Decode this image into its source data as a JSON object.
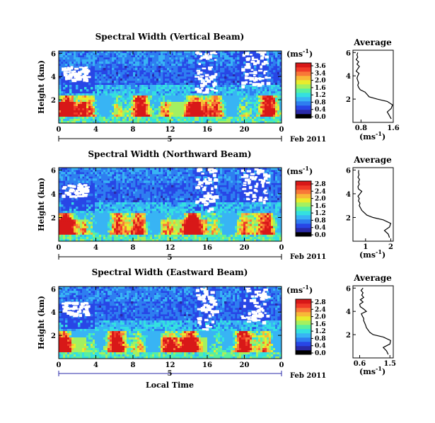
{
  "figure": {
    "date_label": "Feb 2011",
    "day_label": "5",
    "xaxis_title": "Local Time",
    "yaxis_title": "Height (km)",
    "unit_label": "(ms",
    "unit_exp": "-1",
    "unit_close": ")",
    "avg_title": "Average",
    "avg_unit": "(ms",
    "avg_unit_close": ")"
  },
  "colors": {
    "scale": [
      "#000000",
      "#2a2aa8",
      "#2846e6",
      "#2e7ef0",
      "#38b4f4",
      "#34e0e0",
      "#58f0a0",
      "#a4f060",
      "#e8ec2c",
      "#f8b838",
      "#f87838",
      "#f03a28",
      "#d81818"
    ]
  },
  "chart_data": [
    {
      "type": "heatmap",
      "title": "Spectral Width (Vertical Beam)",
      "x_ticks": [
        "0",
        "4",
        "8",
        "12",
        "16",
        "20",
        "0"
      ],
      "y_ticks": [
        "6",
        "4",
        "2"
      ],
      "xlim": [
        0,
        24
      ],
      "ylim": [
        0,
        6.2
      ],
      "colorbar_ticks": [
        "3.6",
        "3.4",
        "2.0",
        "1.6",
        "1.2",
        "0.8",
        "0.4",
        "0.0"
      ],
      "colorbar_range": [
        0,
        3.6
      ],
      "average_profile": {
        "x_ticks": [
          "0.8",
          "1.6"
        ],
        "y_ticks": [
          "6",
          "4",
          "2"
        ],
        "xlim": [
          0.6,
          1.6
        ],
        "ylim": [
          0,
          6.2
        ],
        "height": [
          0.3,
          0.6,
          0.9,
          1.2,
          1.5,
          1.8,
          2.0,
          2.2,
          2.4,
          2.6,
          2.8,
          3.0,
          3.2,
          3.4,
          3.6,
          3.8,
          4.0,
          4.2,
          4.4,
          4.6,
          4.8,
          5.0,
          5.2,
          5.4,
          5.6,
          5.8,
          6.0
        ],
        "width": [
          1.55,
          1.5,
          1.45,
          1.55,
          1.58,
          1.45,
          1.2,
          1.0,
          0.95,
          0.9,
          0.78,
          0.74,
          0.72,
          0.74,
          0.72,
          0.7,
          0.72,
          0.75,
          0.68,
          0.72,
          0.76,
          0.7,
          0.74,
          0.68,
          0.72,
          0.7,
          0.72
        ]
      }
    },
    {
      "type": "heatmap",
      "title": "Spectral Width (Northward Beam)",
      "x_ticks": [
        "0",
        "4",
        "8",
        "12",
        "16",
        "20",
        "0"
      ],
      "y_ticks": [
        "6",
        "4",
        "2"
      ],
      "xlim": [
        0,
        24
      ],
      "ylim": [
        0,
        6.2
      ],
      "colorbar_ticks": [
        "2.8",
        "2.4",
        "2.0",
        "1.6",
        "1.2",
        "0.8",
        "0.4",
        "0.0"
      ],
      "colorbar_range": [
        0,
        2.8
      ],
      "average_profile": {
        "x_ticks": [
          "1",
          "2"
        ],
        "y_ticks": [
          "6",
          "4",
          "2"
        ],
        "xlim": [
          0.5,
          2.1
        ],
        "ylim": [
          0,
          6.2
        ],
        "height": [
          0.3,
          0.6,
          0.9,
          1.2,
          1.5,
          1.8,
          2.0,
          2.2,
          2.4,
          2.6,
          2.8,
          3.0,
          3.2,
          3.4,
          3.6,
          3.8,
          4.0,
          4.2,
          4.4,
          4.6,
          4.8,
          5.0,
          5.2,
          5.4,
          5.6,
          5.8,
          6.0
        ],
        "width": [
          1.95,
          1.9,
          1.75,
          1.95,
          2.0,
          1.7,
          1.3,
          1.05,
          0.95,
          0.85,
          0.8,
          0.75,
          0.78,
          0.72,
          0.75,
          0.7,
          0.78,
          0.85,
          0.72,
          0.7,
          0.75,
          0.72,
          0.76,
          0.7,
          0.74,
          0.72,
          0.73
        ]
      }
    },
    {
      "type": "heatmap",
      "title": "Spectral Width (Eastward Beam)",
      "x_ticks": [
        "0",
        "4",
        "8",
        "12",
        "16",
        "20",
        "0"
      ],
      "y_ticks": [
        "6",
        "4",
        "2"
      ],
      "xlim": [
        0,
        24
      ],
      "ylim": [
        0,
        6.2
      ],
      "colorbar_ticks": [
        "2.8",
        "2.4",
        "2.0",
        "1.6",
        "1.2",
        "0.8",
        "0.4",
        "0.0"
      ],
      "colorbar_range": [
        0,
        2.8
      ],
      "average_profile": {
        "x_ticks": [
          "0.6",
          "1.5"
        ],
        "y_ticks": [
          "6",
          "4",
          "2"
        ],
        "xlim": [
          0.4,
          1.6
        ],
        "ylim": [
          0,
          6.2
        ],
        "height": [
          0.3,
          0.6,
          0.9,
          1.2,
          1.5,
          1.8,
          2.0,
          2.2,
          2.4,
          2.6,
          2.8,
          3.0,
          3.2,
          3.4,
          3.6,
          3.8,
          4.0,
          4.2,
          4.4,
          4.6,
          4.8,
          5.0,
          5.2,
          5.4,
          5.6,
          5.8,
          6.0
        ],
        "width": [
          1.45,
          1.4,
          1.3,
          1.5,
          1.52,
          1.3,
          1.0,
          0.9,
          0.85,
          0.8,
          0.78,
          0.75,
          0.72,
          0.72,
          0.68,
          0.65,
          0.8,
          0.72,
          0.62,
          0.6,
          0.7,
          0.62,
          0.72,
          0.66,
          0.7,
          0.64,
          0.7
        ]
      }
    }
  ]
}
